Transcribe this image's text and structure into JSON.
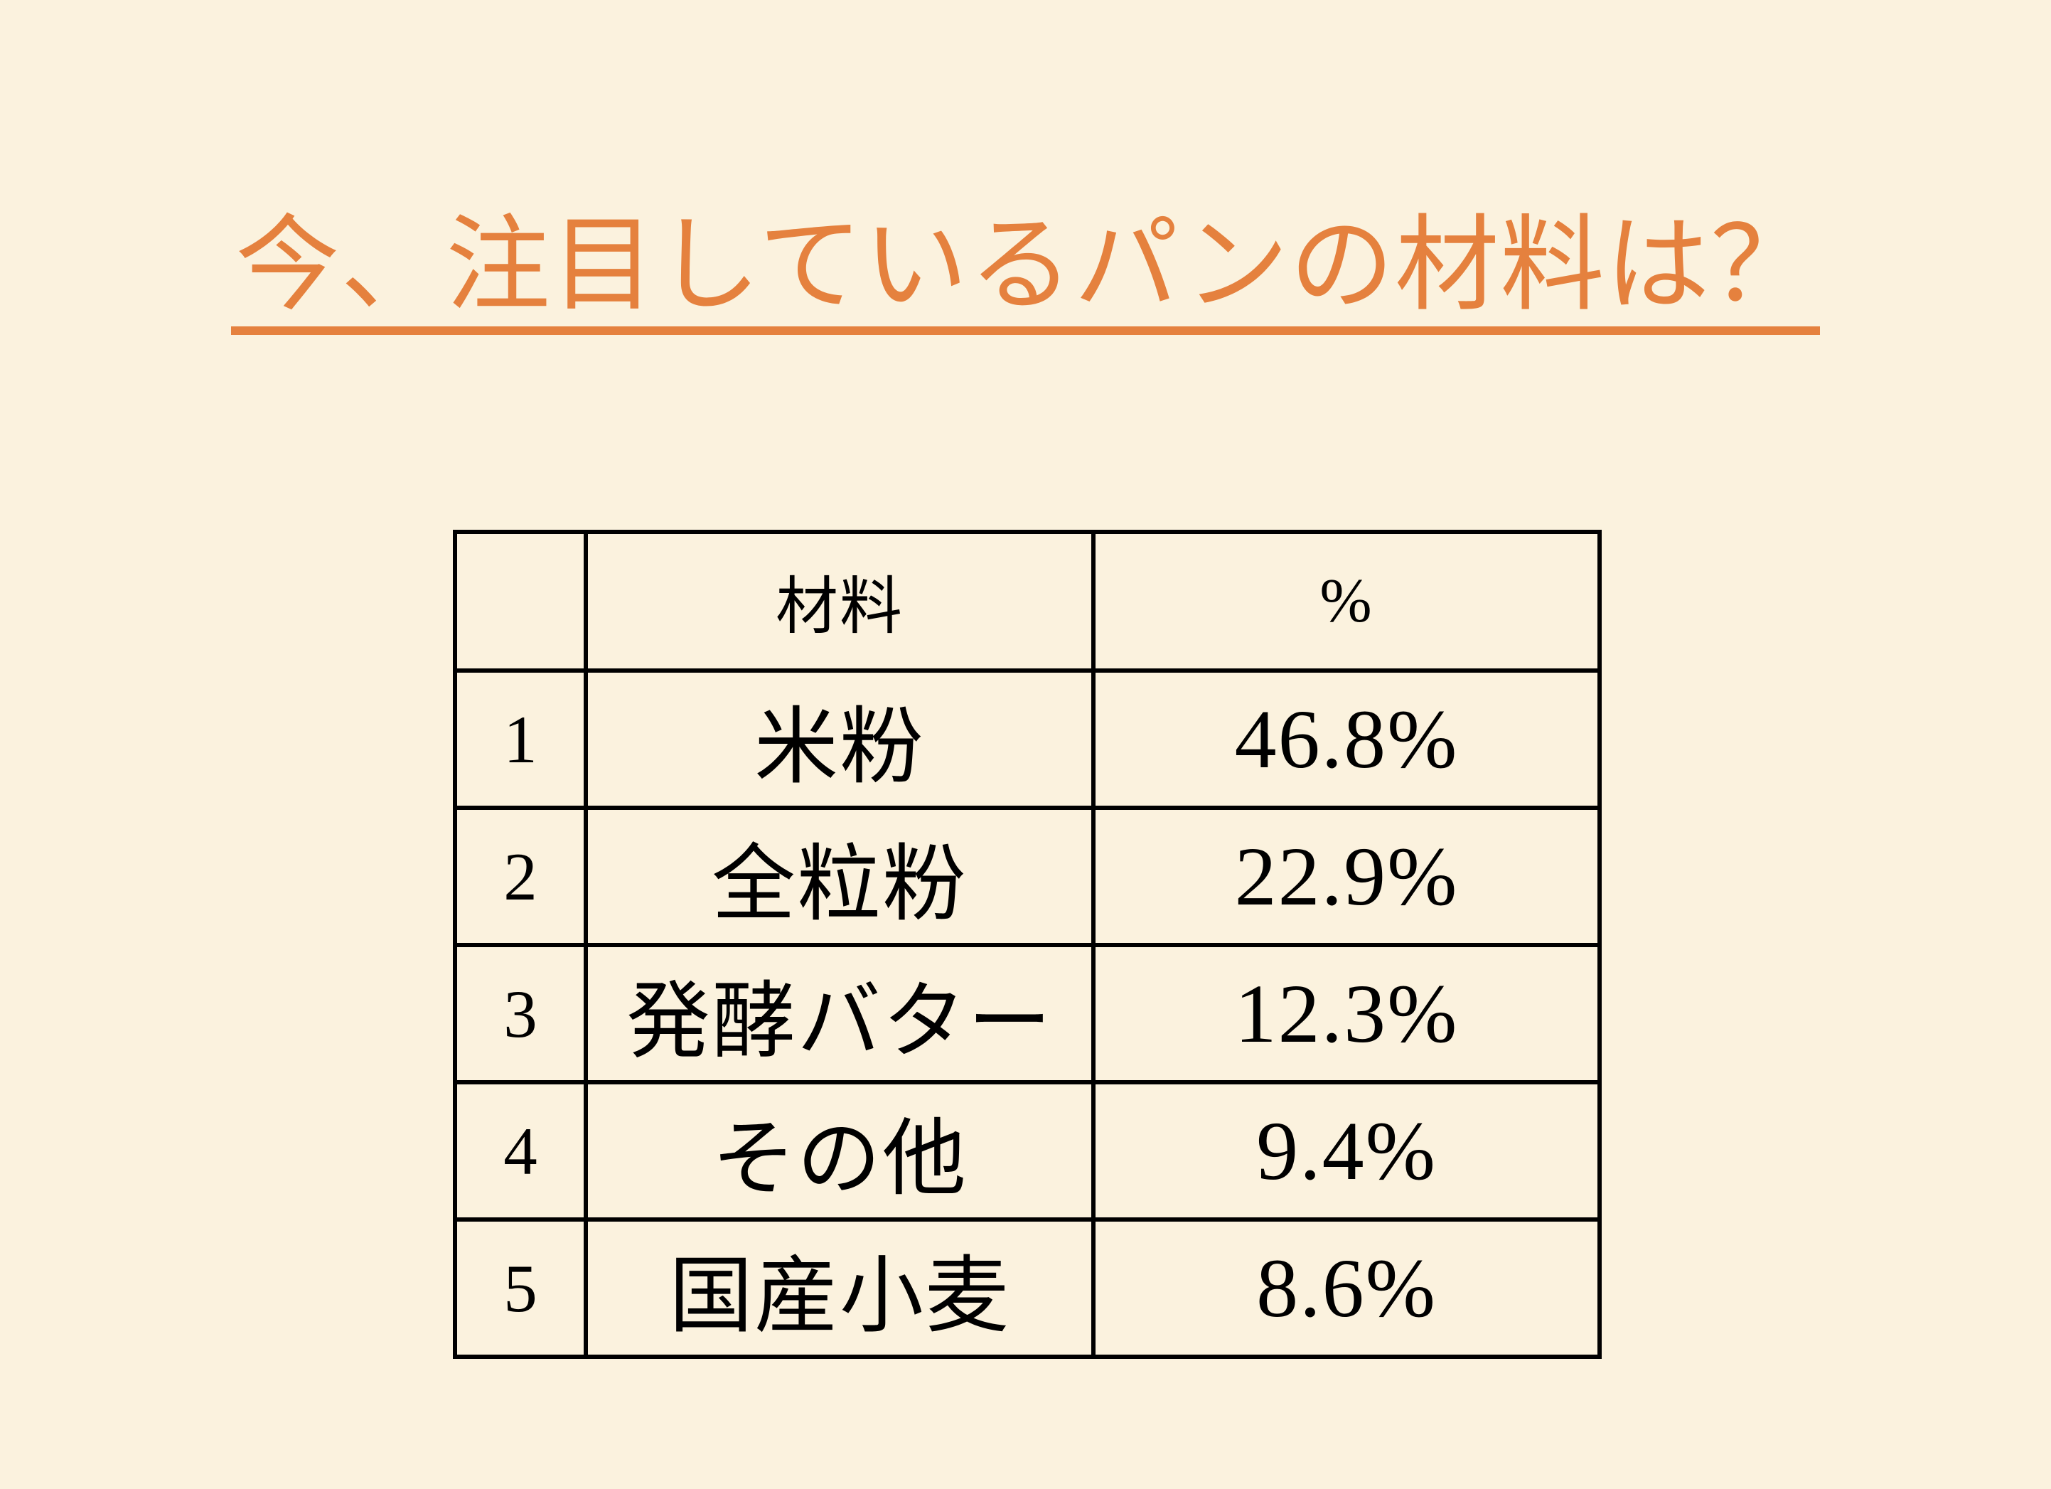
{
  "page": {
    "background_color": "#FBF2DE",
    "accent_color": "#E5813E",
    "text_color": "#000000",
    "border_color": "#000000"
  },
  "title": {
    "text": "今、注目しているパンの材料は？",
    "color": "#E5813E",
    "underlined": true
  },
  "table": {
    "headers": {
      "rank": "",
      "ingredient": "材料",
      "percent": "%"
    },
    "rows": [
      {
        "rank": "1",
        "ingredient": "米粉",
        "percent": "46.8%"
      },
      {
        "rank": "2",
        "ingredient": "全粒粉",
        "percent": "22.9%"
      },
      {
        "rank": "3",
        "ingredient": "発酵バター",
        "percent": "12.3%"
      },
      {
        "rank": "4",
        "ingredient": "その他",
        "percent": "9.4%"
      },
      {
        "rank": "5",
        "ingredient": "国産小麦",
        "percent": "8.6%"
      }
    ]
  },
  "chart_data": {
    "type": "table",
    "title": "今、注目しているパンの材料は？",
    "columns": [
      "",
      "材料",
      "%"
    ],
    "categories": [
      "米粉",
      "全粒粉",
      "発酵バター",
      "その他",
      "国産小麦"
    ],
    "values": [
      46.8,
      22.9,
      12.3,
      9.4,
      8.6
    ],
    "value_unit": "%",
    "ranks": [
      1,
      2,
      3,
      4,
      5
    ],
    "legend_position": "none",
    "grid": "full-borders"
  }
}
